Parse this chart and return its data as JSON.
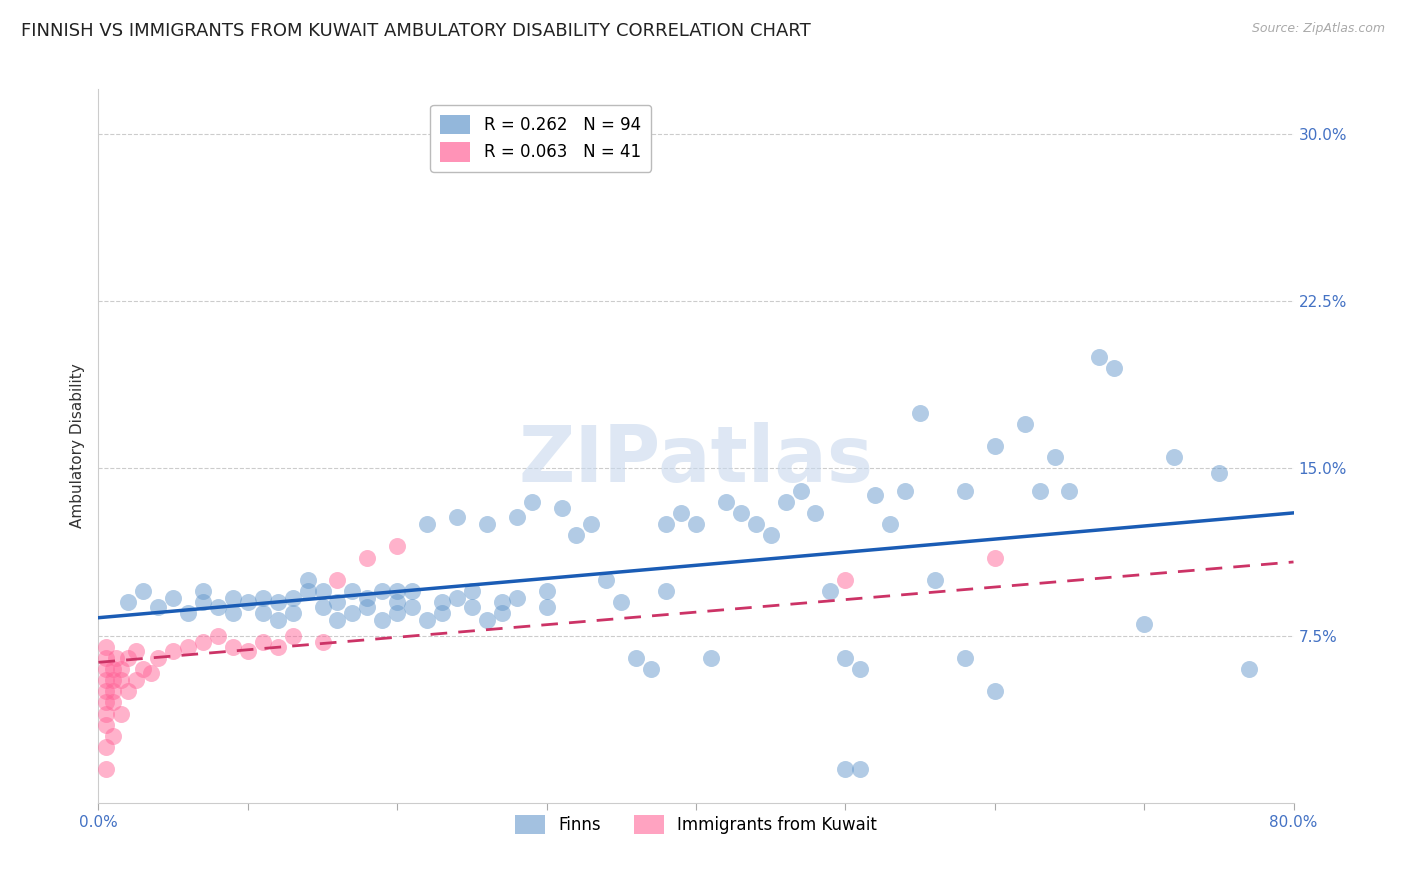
{
  "title": "FINNISH VS IMMIGRANTS FROM KUWAIT AMBULATORY DISABILITY CORRELATION CHART",
  "source": "Source: ZipAtlas.com",
  "ylabel": "Ambulatory Disability",
  "xlim": [
    0.0,
    0.8
  ],
  "ylim": [
    0.0,
    0.32
  ],
  "yticks": [
    0.075,
    0.15,
    0.225,
    0.3
  ],
  "ytick_labels": [
    "7.5%",
    "15.0%",
    "22.5%",
    "30.0%"
  ],
  "xticks": [
    0.0,
    0.1,
    0.2,
    0.3,
    0.4,
    0.5,
    0.6,
    0.7,
    0.8
  ],
  "xtick_labels": [
    "0.0%",
    "",
    "",
    "",
    "",
    "",
    "",
    "",
    "80.0%"
  ],
  "finn_color": "#6699CC",
  "kuwait_color": "#FF6699",
  "finn_R": 0.262,
  "finn_N": 94,
  "kuwait_R": 0.063,
  "kuwait_N": 41,
  "watermark": "ZIPatlas",
  "finn_points_x": [
    0.02,
    0.03,
    0.04,
    0.05,
    0.06,
    0.07,
    0.07,
    0.08,
    0.09,
    0.09,
    0.1,
    0.11,
    0.11,
    0.12,
    0.12,
    0.13,
    0.13,
    0.14,
    0.14,
    0.15,
    0.15,
    0.16,
    0.16,
    0.17,
    0.17,
    0.18,
    0.18,
    0.19,
    0.19,
    0.2,
    0.2,
    0.2,
    0.21,
    0.21,
    0.22,
    0.22,
    0.23,
    0.23,
    0.24,
    0.24,
    0.25,
    0.25,
    0.26,
    0.26,
    0.27,
    0.27,
    0.28,
    0.28,
    0.29,
    0.3,
    0.3,
    0.31,
    0.32,
    0.33,
    0.34,
    0.35,
    0.36,
    0.37,
    0.38,
    0.38,
    0.39,
    0.4,
    0.41,
    0.42,
    0.43,
    0.44,
    0.45,
    0.46,
    0.47,
    0.48,
    0.49,
    0.5,
    0.51,
    0.52,
    0.53,
    0.54,
    0.56,
    0.58,
    0.6,
    0.62,
    0.64,
    0.65,
    0.67,
    0.68,
    0.7,
    0.72,
    0.75,
    0.77,
    0.5,
    0.51,
    0.55,
    0.58,
    0.6,
    0.63
  ],
  "finn_points_y": [
    0.09,
    0.095,
    0.088,
    0.092,
    0.085,
    0.09,
    0.095,
    0.088,
    0.085,
    0.092,
    0.09,
    0.085,
    0.092,
    0.082,
    0.09,
    0.092,
    0.085,
    0.095,
    0.1,
    0.088,
    0.095,
    0.082,
    0.09,
    0.095,
    0.085,
    0.092,
    0.088,
    0.095,
    0.082,
    0.09,
    0.085,
    0.095,
    0.088,
    0.095,
    0.082,
    0.125,
    0.09,
    0.085,
    0.092,
    0.128,
    0.088,
    0.095,
    0.082,
    0.125,
    0.09,
    0.085,
    0.092,
    0.128,
    0.135,
    0.088,
    0.095,
    0.132,
    0.12,
    0.125,
    0.1,
    0.09,
    0.065,
    0.06,
    0.095,
    0.125,
    0.13,
    0.125,
    0.065,
    0.135,
    0.13,
    0.125,
    0.12,
    0.135,
    0.14,
    0.13,
    0.095,
    0.065,
    0.06,
    0.138,
    0.125,
    0.14,
    0.1,
    0.14,
    0.16,
    0.17,
    0.155,
    0.14,
    0.2,
    0.195,
    0.08,
    0.155,
    0.148,
    0.06,
    0.015,
    0.015,
    0.175,
    0.065,
    0.05,
    0.14
  ],
  "kuwait_points_x": [
    0.005,
    0.005,
    0.005,
    0.005,
    0.005,
    0.005,
    0.005,
    0.005,
    0.005,
    0.005,
    0.01,
    0.01,
    0.01,
    0.01,
    0.01,
    0.012,
    0.015,
    0.015,
    0.015,
    0.02,
    0.02,
    0.025,
    0.025,
    0.03,
    0.035,
    0.04,
    0.05,
    0.06,
    0.07,
    0.08,
    0.09,
    0.1,
    0.11,
    0.12,
    0.13,
    0.15,
    0.16,
    0.18,
    0.2,
    0.5,
    0.6
  ],
  "kuwait_points_y": [
    0.06,
    0.055,
    0.05,
    0.045,
    0.04,
    0.035,
    0.025,
    0.015,
    0.07,
    0.065,
    0.06,
    0.055,
    0.05,
    0.045,
    0.03,
    0.065,
    0.06,
    0.055,
    0.04,
    0.065,
    0.05,
    0.068,
    0.055,
    0.06,
    0.058,
    0.065,
    0.068,
    0.07,
    0.072,
    0.075,
    0.07,
    0.068,
    0.072,
    0.07,
    0.075,
    0.072,
    0.1,
    0.11,
    0.115,
    0.1,
    0.11
  ],
  "grid_color": "#cccccc",
  "background_color": "#ffffff",
  "title_fontsize": 13,
  "axis_label_fontsize": 11,
  "tick_fontsize": 11,
  "legend_fontsize": 12
}
